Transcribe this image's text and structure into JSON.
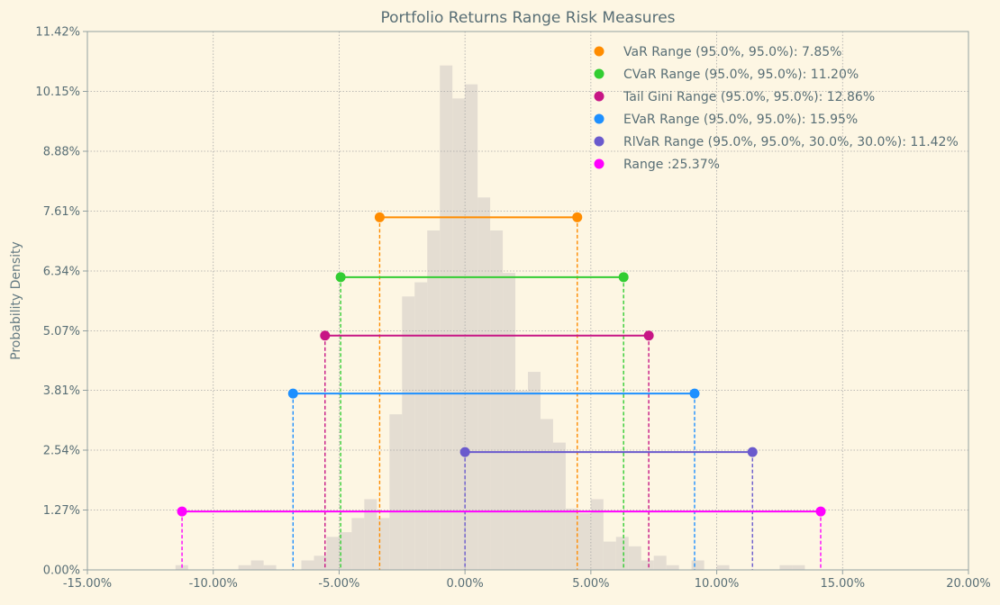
{
  "chart_data": {
    "type": "bar",
    "title": "Portfolio Returns Range Risk Measures",
    "xlabel": "",
    "ylabel": "Probability Density",
    "xlim": [
      -0.15,
      0.2
    ],
    "ylim": [
      0,
      0.1142
    ],
    "x_ticks": [
      -0.15,
      -0.1,
      -0.05,
      0.0,
      0.05,
      0.1,
      0.15,
      0.2
    ],
    "x_tick_labels": [
      "-15.00%",
      "-10.00%",
      "-5.00%",
      "0.00%",
      "5.00%",
      "10.00%",
      "15.00%",
      "20.00%"
    ],
    "y_ticks": [
      0.0,
      0.0127,
      0.0254,
      0.0381,
      0.0507,
      0.0634,
      0.0761,
      0.0888,
      0.1015,
      0.1142
    ],
    "y_tick_labels": [
      "0.00%",
      "1.27%",
      "2.54%",
      "3.81%",
      "5.07%",
      "6.34%",
      "7.61%",
      "8.88%",
      "10.15%",
      "11.42%"
    ],
    "grid": true,
    "legend_position": "top-right",
    "histogram": {
      "color": "#e4ddd2",
      "bin_width": 0.005,
      "bins": [
        [
          -0.1125,
          0.001
        ],
        [
          -0.0875,
          0.001
        ],
        [
          -0.0825,
          0.002
        ],
        [
          -0.0775,
          0.001
        ],
        [
          -0.0625,
          0.002
        ],
        [
          -0.0575,
          0.003
        ],
        [
          -0.0525,
          0.007
        ],
        [
          -0.0475,
          0.008
        ],
        [
          -0.0425,
          0.011
        ],
        [
          -0.0375,
          0.015
        ],
        [
          -0.0325,
          0.011
        ],
        [
          -0.0275,
          0.033
        ],
        [
          -0.0225,
          0.058
        ],
        [
          -0.0175,
          0.061
        ],
        [
          -0.0125,
          0.072
        ],
        [
          -0.0075,
          0.107
        ],
        [
          -0.0025,
          0.1
        ],
        [
          0.0025,
          0.103
        ],
        [
          0.0075,
          0.079
        ],
        [
          0.0125,
          0.072
        ],
        [
          0.0175,
          0.063
        ],
        [
          0.0225,
          0.038
        ],
        [
          0.0275,
          0.042
        ],
        [
          0.0325,
          0.032
        ],
        [
          0.0375,
          0.027
        ],
        [
          0.0425,
          0.013
        ],
        [
          0.0475,
          0.012
        ],
        [
          0.0525,
          0.015
        ],
        [
          0.0575,
          0.006
        ],
        [
          0.0625,
          0.007
        ],
        [
          0.0675,
          0.005
        ],
        [
          0.0725,
          0.002
        ],
        [
          0.0775,
          0.003
        ],
        [
          0.0825,
          0.001
        ],
        [
          0.0925,
          0.002
        ],
        [
          0.1025,
          0.001
        ],
        [
          0.1275,
          0.001
        ],
        [
          0.1325,
          0.001
        ]
      ]
    },
    "series": [
      {
        "name": "VaR Range (95.0%, 95.0%): 7.85%",
        "color": "#ff8c00",
        "x_low": -0.0339,
        "x_high": 0.0446,
        "y": 0.0748
      },
      {
        "name": "CVaR Range (95.0%, 95.0%): 11.20%",
        "color": "#32cd32",
        "x_low": -0.0494,
        "x_high": 0.063,
        "y": 0.0621
      },
      {
        "name": "Tail Gini Range (95.0%, 95.0%): 12.86%",
        "color": "#c71585",
        "x_low": -0.0556,
        "x_high": 0.073,
        "y": 0.0497
      },
      {
        "name": "EVaR Range (95.0%, 95.0%): 15.95%",
        "color": "#1e90ff",
        "x_low": -0.0683,
        "x_high": 0.0912,
        "y": 0.0374
      },
      {
        "name": "RlVaR Range (95.0%, 95.0%, 30.0%, 30.0%): 11.42%",
        "color": "#6a5acd",
        "x_low": 0.0,
        "x_high": 0.1142,
        "y": 0.025
      },
      {
        "name": "Range :25.37%",
        "color": "#ff00ff",
        "x_low": -0.1124,
        "x_high": 0.1413,
        "y": 0.0124
      }
    ]
  }
}
